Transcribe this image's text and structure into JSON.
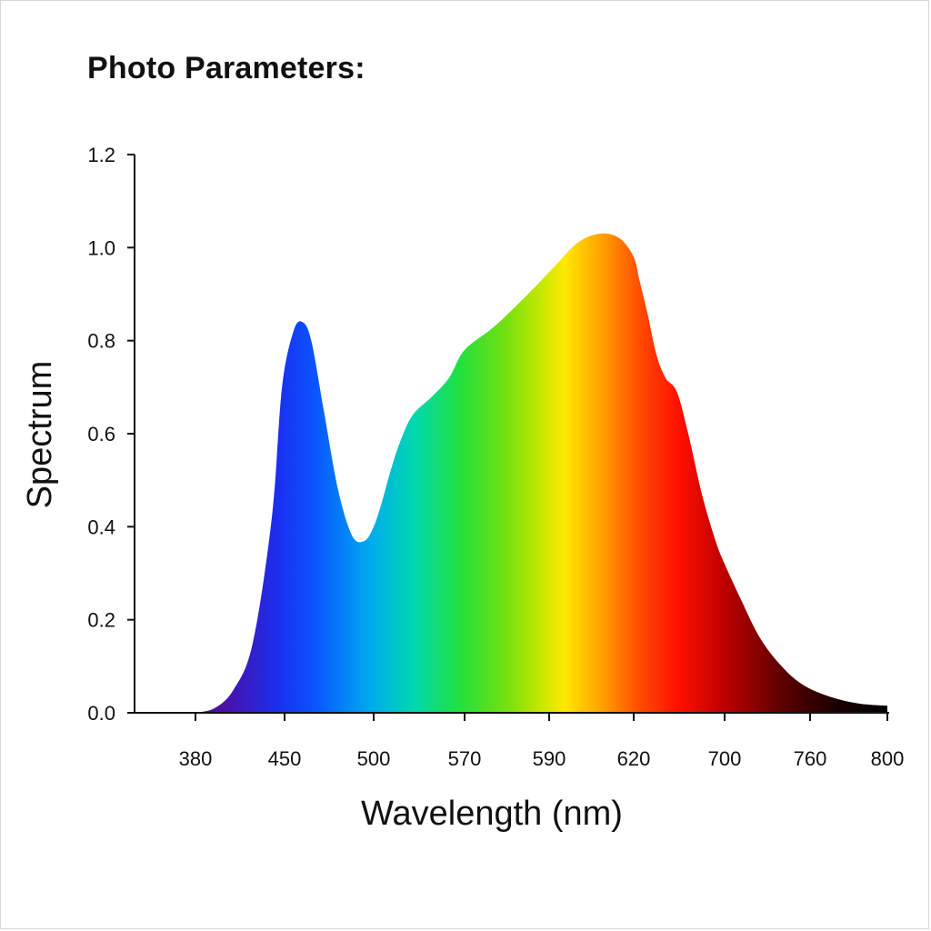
{
  "title": "Photo Parameters:",
  "chart_data": {
    "type": "area",
    "title": "Photo Parameters:",
    "xlabel": "Wavelength (nm)",
    "ylabel": "Spectrum",
    "x_tick_labels": [
      "380",
      "450",
      "500",
      "570",
      "590",
      "620",
      "700",
      "760",
      "800"
    ],
    "y_ticks": [
      0.0,
      0.2,
      0.4,
      0.6,
      0.8,
      1.0,
      1.2
    ],
    "y_tick_labels": [
      "0.0",
      "0.2",
      "0.4",
      "0.6",
      "0.8",
      "1.0",
      "1.2"
    ],
    "ylim": [
      0,
      1.2
    ],
    "grid": false,
    "legend": "none",
    "fill": "visible-spectrum gradient (violet → blue → cyan → green → yellow → orange → red → black)",
    "series": [
      {
        "x": [
          380,
          395,
          410,
          425,
          440,
          448,
          455,
          460,
          465,
          472,
          480,
          488,
          495,
          500,
          506,
          513,
          520,
          530,
          545,
          558,
          570,
          577,
          585,
          592,
          600,
          608,
          615,
          620,
          625,
          632,
          640,
          648,
          658,
          668,
          680,
          692,
          700,
          712,
          725,
          740,
          755,
          770,
          785,
          800
        ],
        "values": [
          0.0,
          0.01,
          0.05,
          0.15,
          0.42,
          0.7,
          0.82,
          0.84,
          0.8,
          0.65,
          0.48,
          0.38,
          0.37,
          0.4,
          0.45,
          0.52,
          0.58,
          0.64,
          0.68,
          0.72,
          0.78,
          0.83,
          0.9,
          0.96,
          1.01,
          1.03,
          1.02,
          0.98,
          0.93,
          0.86,
          0.77,
          0.72,
          0.69,
          0.6,
          0.47,
          0.37,
          0.32,
          0.24,
          0.16,
          0.1,
          0.06,
          0.035,
          0.02,
          0.015
        ]
      }
    ]
  }
}
